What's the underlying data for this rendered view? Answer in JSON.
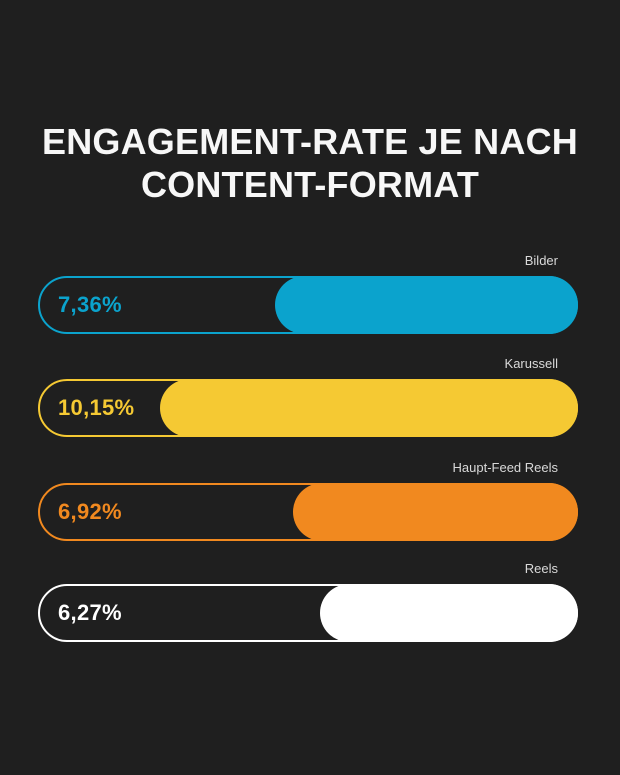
{
  "page": {
    "background_color": "#1f1f1f",
    "text_color": "#f7f7f7",
    "label_color": "#d9d9d9"
  },
  "header": {
    "title_line1": "ENGAGEMENT-RATE JE NACH",
    "title_line2": "CONTENT-FORMAT"
  },
  "chart_data": {
    "type": "bar",
    "orientation": "horizontal",
    "title": "Engagement-Rate je nach Content-Format",
    "categories": [
      "Bilder",
      "Karussell",
      "Haupt-Feed Reels",
      "Reels"
    ],
    "values": [
      7.36,
      10.15,
      6.92,
      6.27
    ],
    "value_labels": [
      "7,36%",
      "10,15%",
      "6,92%",
      "6,27%"
    ],
    "colors": [
      "#0ba3cd",
      "#f5c933",
      "#f1891f",
      "#ffffff"
    ],
    "unit": "%",
    "xlim": [
      0,
      13.1
    ],
    "bar_anchor": "right",
    "grid": false,
    "legend": false,
    "bar_style": "outlined pill track with right-anchored filled pill",
    "label_position": "above bar, right-aligned",
    "value_position": "inside track, left"
  }
}
